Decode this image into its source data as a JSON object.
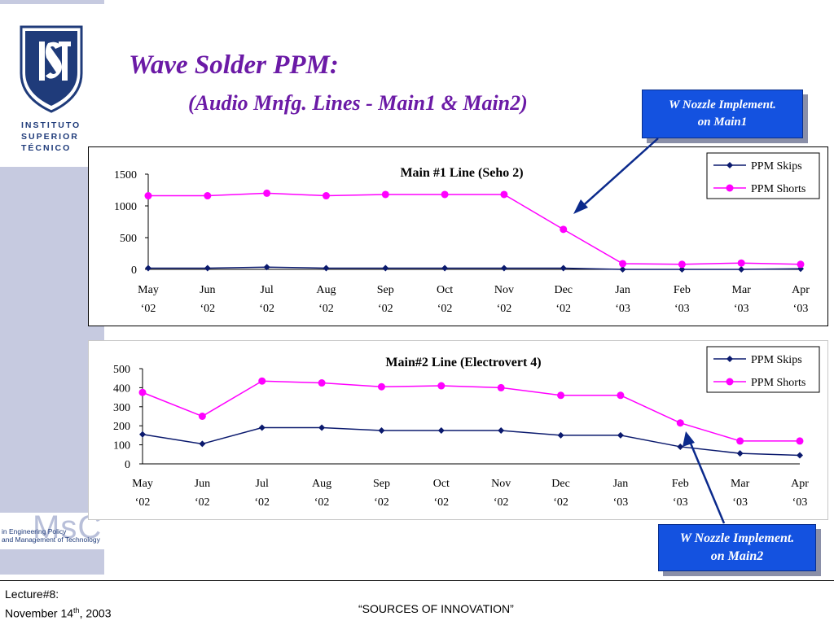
{
  "sidebar": {
    "logo_text_lines": [
      "INSTITUTO",
      "SUPERIOR",
      "TÉCNICO"
    ],
    "msc_logo": {
      "big": "MsC",
      "line1": "in Engineering Policy",
      "line2": "and Management of Technology"
    }
  },
  "slide": {
    "title": "Wave Solder PPM:",
    "subtitle": "(Audio Mnfg. Lines - Main1 & Main2)"
  },
  "callouts": {
    "main1": {
      "line1": "W Nozzle Implement.",
      "line2": "on Main1"
    },
    "main2": {
      "line1": "W Nozzle Implement.",
      "line2": "on Main2"
    }
  },
  "footer": {
    "lecture": "Lecture#8:",
    "date_prefix": "November 14",
    "date_sup": "th",
    "date_suffix": ", 2003",
    "center": "“SOURCES OF INNOVATION”"
  },
  "colors": {
    "skips": "#0b1a6e",
    "shorts": "#ff00ff",
    "title": "#6b1aa6",
    "callout": "#1452e0",
    "arrow": "#0b2a8c"
  },
  "chart_data": [
    {
      "type": "line",
      "title": "Main #1 Line (Seho 2)",
      "categories": [
        "May ‘02",
        "Jun ‘02",
        "Jul ‘02",
        "Aug ‘02",
        "Sep ‘02",
        "Oct ‘02",
        "Nov ‘02",
        "Dec ‘02",
        "Jan ‘03",
        "Feb ‘03",
        "Mar ‘03",
        "Apr ‘03"
      ],
      "category_labels": [
        [
          "May",
          "‘02"
        ],
        [
          "Jun",
          "‘02"
        ],
        [
          "Jul",
          "‘02"
        ],
        [
          "Aug",
          "‘02"
        ],
        [
          "Sep",
          "‘02"
        ],
        [
          "Oct",
          "‘02"
        ],
        [
          "Nov",
          "‘02"
        ],
        [
          "Dec",
          "‘02"
        ],
        [
          "Jan",
          "‘03"
        ],
        [
          "Feb",
          "‘03"
        ],
        [
          "Mar",
          "‘03"
        ],
        [
          "Apr",
          "‘03"
        ]
      ],
      "series": [
        {
          "name": "PPM Skips",
          "marker": "diamond",
          "values": [
            20,
            20,
            35,
            20,
            20,
            20,
            20,
            20,
            0,
            0,
            0,
            10
          ]
        },
        {
          "name": "PPM Shorts",
          "marker": "circle",
          "values": [
            1160,
            1160,
            1200,
            1160,
            1180,
            1180,
            1180,
            630,
            90,
            80,
            100,
            80
          ]
        }
      ],
      "ylim": [
        0,
        1500
      ],
      "yticks": [
        0,
        500,
        1000,
        1500
      ],
      "legend": "top-right",
      "grid": false
    },
    {
      "type": "line",
      "title": "Main#2 Line (Electrovert 4)",
      "categories": [
        "May ‘02",
        "Jun ‘02",
        "Jul ‘02",
        "Aug ‘02",
        "Sep ‘02",
        "Oct ‘02",
        "Nov ‘02",
        "Dec ‘02",
        "Jan ‘03",
        "Feb ‘03",
        "Mar ‘03",
        "Apr ‘03"
      ],
      "category_labels": [
        [
          "May",
          "‘02"
        ],
        [
          "Jun",
          "‘02"
        ],
        [
          "Jul",
          "‘02"
        ],
        [
          "Aug",
          "‘02"
        ],
        [
          "Sep",
          "‘02"
        ],
        [
          "Oct",
          "‘02"
        ],
        [
          "Nov",
          "‘02"
        ],
        [
          "Dec",
          "‘02"
        ],
        [
          "Jan",
          "‘03"
        ],
        [
          "Feb",
          "‘03"
        ],
        [
          "Mar",
          "‘03"
        ],
        [
          "Apr",
          "‘03"
        ]
      ],
      "series": [
        {
          "name": "PPM Skips",
          "marker": "diamond",
          "values": [
            155,
            105,
            190,
            190,
            175,
            175,
            175,
            150,
            150,
            90,
            55,
            45
          ]
        },
        {
          "name": "PPM Shorts",
          "marker": "circle",
          "values": [
            375,
            250,
            435,
            425,
            405,
            410,
            400,
            360,
            360,
            215,
            120,
            120
          ]
        }
      ],
      "ylim": [
        0,
        500
      ],
      "yticks": [
        0,
        100,
        200,
        300,
        400,
        500
      ],
      "legend": "top-right",
      "grid": false
    }
  ]
}
